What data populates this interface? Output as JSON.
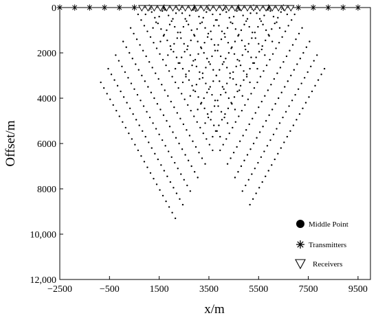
{
  "chart_data": {
    "type": "scatter",
    "title": "",
    "xlabel": "x/m",
    "ylabel": "Offset/m",
    "xlim": [
      -2500,
      10000
    ],
    "ylim": [
      12000,
      0
    ],
    "y_inverted": true,
    "x_ticks": [
      -2500,
      -500,
      1500,
      3500,
      5500,
      7500,
      9500
    ],
    "x_tick_labels": [
      "−2500",
      "−500",
      "1500",
      "3500",
      "5500",
      "7500",
      "9500"
    ],
    "y_ticks": [
      0,
      2000,
      4000,
      6000,
      8000,
      10000,
      12000
    ],
    "y_tick_labels": [
      "0",
      "2000",
      "4000",
      "6000",
      "8000",
      "10,000",
      "12,000"
    ],
    "grid": false,
    "legend_placement": "bottom-right",
    "series": [
      {
        "name": "Middle Point",
        "marker": "dot",
        "color": "#000000",
        "description": "midpoints: x = (s + r)/2, offset = |r − s|",
        "transmitter_x": [
          -2500,
          -1900,
          -1300,
          -700,
          -100,
          500,
          1100,
          1700,
          2300,
          2900,
          3500,
          4100,
          4700,
          5300,
          5900,
          6500,
          7100,
          7700,
          8300,
          8900,
          9500
        ],
        "receiver_x": [
          800,
          1050,
          1300,
          1550,
          1800,
          2050,
          2300,
          2550,
          2800,
          3050,
          3300,
          3550,
          3800,
          4050,
          4300,
          4550,
          4800,
          5050,
          5300,
          5550,
          5800,
          6050,
          6300,
          6550,
          6800
        ],
        "max_offset": 9300
      },
      {
        "name": "Transmitters",
        "marker": "asterisk",
        "color": "#000000",
        "x": [
          -2500,
          -1900,
          -1300,
          -700,
          -100,
          500,
          1100,
          1700,
          2300,
          2900,
          3500,
          4100,
          4700,
          5300,
          5900,
          6500,
          7100,
          7700,
          8300,
          8900,
          9500
        ],
        "y": 0
      },
      {
        "name": "Receivers",
        "marker": "triangle-down",
        "color": "#000000",
        "x": [
          800,
          1050,
          1300,
          1550,
          1800,
          2050,
          2300,
          2550,
          2800,
          3050,
          3300,
          3550,
          3800,
          4050,
          4300,
          4550,
          4800,
          5050,
          5300,
          5550,
          5800,
          6050,
          6300,
          6550,
          6800
        ],
        "y": 0
      }
    ]
  }
}
